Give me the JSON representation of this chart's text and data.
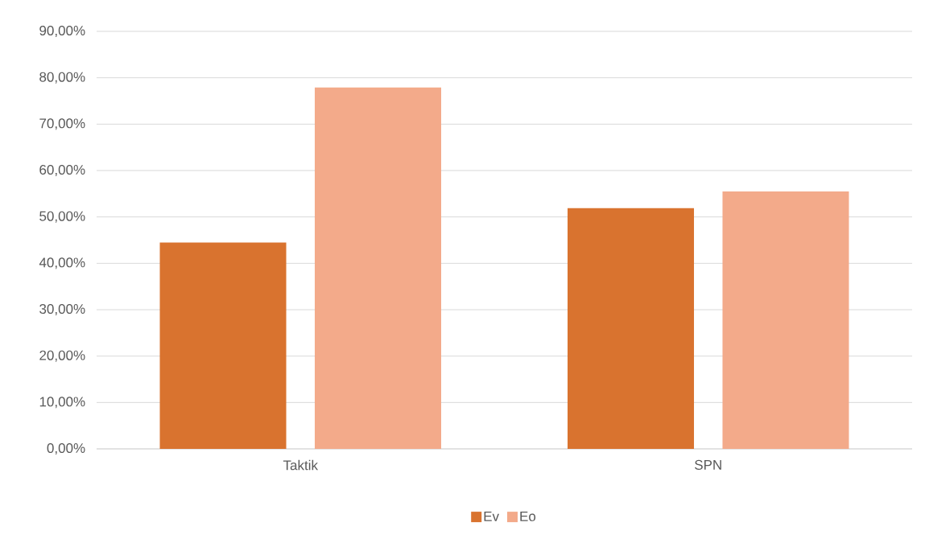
{
  "chart_data": {
    "type": "bar",
    "categories": [
      "Taktik",
      "SPN"
    ],
    "series": [
      {
        "name": "Ev",
        "color": "#d9732f",
        "values": [
          44.5,
          51.9
        ]
      },
      {
        "name": "Eo",
        "color": "#f3aa8a",
        "values": [
          77.9,
          55.5
        ]
      }
    ],
    "ylim": [
      0,
      90
    ],
    "yticks": [
      {
        "value": 0,
        "label": "0,00%"
      },
      {
        "value": 10,
        "label": "10,00%"
      },
      {
        "value": 20,
        "label": "20,00%"
      },
      {
        "value": 30,
        "label": "30,00%"
      },
      {
        "value": 40,
        "label": "40,00%"
      },
      {
        "value": 50,
        "label": "50,00%"
      },
      {
        "value": 60,
        "label": "60,00%"
      },
      {
        "value": 70,
        "label": "70,00%"
      },
      {
        "value": 80,
        "label": "80,00%"
      },
      {
        "value": 90,
        "label": "90,00%"
      }
    ],
    "grid": "y",
    "legend": "bottom"
  }
}
